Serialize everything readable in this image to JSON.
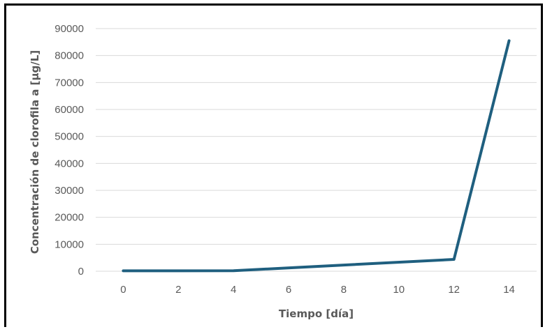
{
  "chart_data": {
    "type": "line",
    "xlabel": "Tiempo [día]",
    "ylabel": "Concentración de clorofila a [µg/L]",
    "x_ticks": [
      0,
      2,
      4,
      6,
      8,
      10,
      12,
      14
    ],
    "y_ticks": [
      0,
      10000,
      20000,
      30000,
      40000,
      50000,
      60000,
      70000,
      80000,
      90000
    ],
    "xlim": [
      -1,
      15
    ],
    "ylim": [
      0,
      90000
    ],
    "grid": true,
    "series": [
      {
        "color": "#1f5f7f",
        "x": [
          0,
          4,
          12,
          14
        ],
        "y": [
          150,
          200,
          4400,
          85500
        ]
      }
    ]
  }
}
